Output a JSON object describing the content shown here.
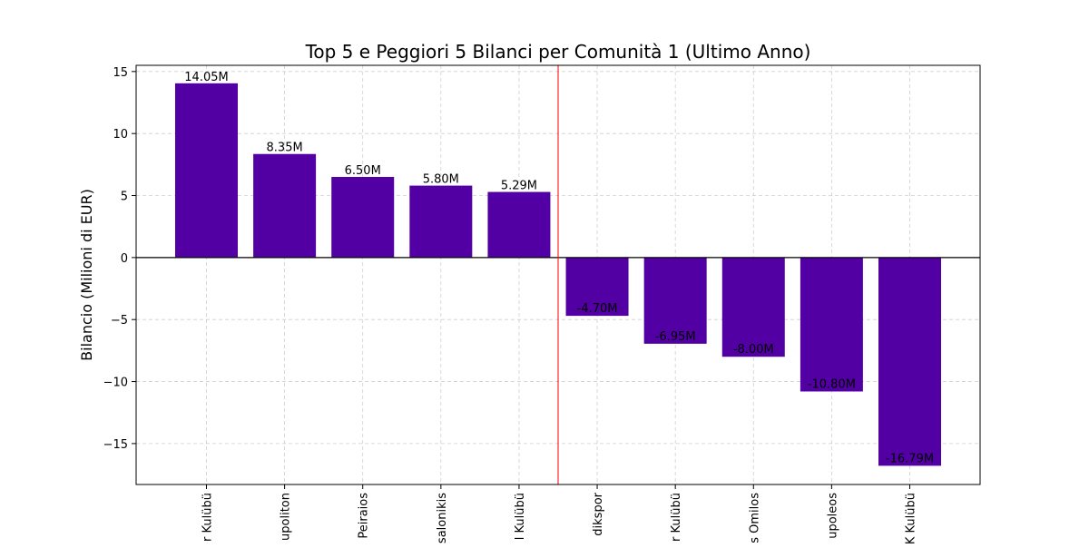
{
  "chart_data": {
    "type": "bar",
    "title": "Top 5 e Peggiori 5 Bilanci per Comunità 1 (Ultimo Anno)",
    "xlabel": "",
    "ylabel": "Bilancio (Milioni di EUR)",
    "categories": [
      "r Kulübü",
      "upoliton",
      "Peiraios",
      "salonikis",
      "l Kulübü",
      "dikspor",
      "r Kulübü",
      "s Omilos",
      "upoleos",
      "K Kulübü"
    ],
    "values": [
      14.05,
      8.35,
      6.5,
      5.8,
      5.29,
      -4.7,
      -6.95,
      -8.0,
      -10.8,
      -16.79
    ],
    "value_labels": [
      "14.05M",
      "8.35M",
      "6.50M",
      "5.80M",
      "5.29M",
      "-4.70M",
      "-6.95M",
      "-8.00M",
      "-10.80M",
      "-16.79M"
    ],
    "ylim": [
      -18.3,
      15.5
    ],
    "yticks": [
      -15,
      -10,
      -5,
      0,
      5,
      10,
      15
    ],
    "ytick_labels": [
      "−15",
      "−10",
      "−5",
      "0",
      "5",
      "10",
      "15"
    ],
    "grid": true,
    "bar_color": "#5200a3",
    "zero_line_color": "#000000",
    "separator_line_color": "#ff0000",
    "separator_after_index": 4
  }
}
